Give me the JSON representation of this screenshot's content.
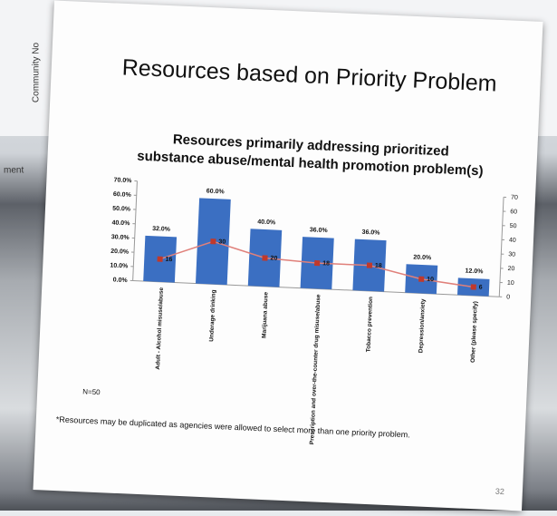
{
  "background_text": [
    "Community No",
    "ment"
  ],
  "page_title": "Resources based on Priority Problem",
  "chart_data": {
    "type": "bar",
    "title": "Resources primarily addressing prioritized substance abuse/mental health promotion problem(s)",
    "categories": [
      "Adult - Alcohol misuse/abuse",
      "Underage drinking",
      "Marijuana abuse",
      "Prescription and over-the-counter drug misuse/abuse",
      "Tobacco prevention",
      "Depression/anxiety",
      "Other (please specify)"
    ],
    "series": [
      {
        "type": "bar",
        "color": "#3b6fc2",
        "values": [
          32,
          60,
          40,
          36,
          36,
          20,
          12
        ],
        "value_labels": [
          "32.0%",
          "60.0%",
          "40.0%",
          "36.0%",
          "36.0%",
          "20.0%",
          "12.0%"
        ]
      },
      {
        "type": "line",
        "axis": "y2",
        "color": "#e0807a",
        "values": [
          16,
          30,
          20,
          18,
          18,
          10,
          6
        ]
      }
    ],
    "ylim": [
      0,
      70
    ],
    "yticks": [
      {
        "value": 0,
        "label": "0.0%"
      },
      {
        "value": 10,
        "label": "10.0%"
      },
      {
        "value": 20,
        "label": "20.0%"
      },
      {
        "value": 30,
        "label": "30.0%"
      },
      {
        "value": 40,
        "label": "40.0%"
      },
      {
        "value": 50,
        "label": "50.0%"
      },
      {
        "value": 60,
        "label": "60.0%"
      },
      {
        "value": 70,
        "label": "70.0%"
      }
    ],
    "y2lim": [
      0,
      70
    ],
    "y2ticks": [
      0,
      10,
      20,
      30,
      40,
      50,
      60,
      70
    ],
    "note": "N=50"
  },
  "footnote": "*Resources may be duplicated as agencies were allowed to select more than one priority problem.",
  "page_number": "32"
}
